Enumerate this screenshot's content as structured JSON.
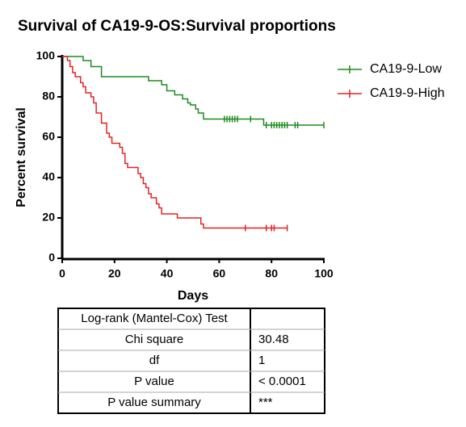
{
  "chart_data": {
    "type": "step",
    "title": "Survival of CA19-9-OS:Survival proportions",
    "x_label": "Days",
    "y_label": "Percent survival",
    "xlim": [
      0,
      100
    ],
    "xticks": [
      0,
      20,
      40,
      60,
      80,
      100
    ],
    "ylim": [
      0,
      100
    ],
    "yticks": [
      0,
      20,
      40,
      60,
      80,
      100
    ],
    "series": [
      {
        "name": "CA19-9-Low",
        "color": "#1f8a1f",
        "x": [
          0,
          8,
          11,
          15,
          33,
          38,
          40,
          43,
          46,
          48,
          49,
          51,
          52,
          54,
          77,
          100
        ],
        "values": [
          100,
          98,
          95,
          90,
          88,
          86,
          83,
          81,
          79,
          77,
          76,
          74,
          72,
          69,
          66,
          66
        ],
        "censored": {
          "x": [
            62,
            63,
            64,
            65,
            66,
            67,
            72,
            78,
            80,
            81,
            82,
            83,
            84,
            85,
            86,
            89,
            90,
            100
          ],
          "values": [
            69,
            69,
            69,
            69,
            69,
            69,
            69,
            66,
            66,
            66,
            66,
            66,
            66,
            66,
            66,
            66,
            66,
            66
          ]
        }
      },
      {
        "name": "CA19-9-High",
        "color": "#e52222",
        "x": [
          0,
          2,
          3,
          4,
          5,
          7,
          8,
          9,
          11,
          12,
          13,
          15,
          17,
          18,
          19,
          22,
          23,
          24,
          25,
          29,
          30,
          31,
          32,
          33,
          34,
          36,
          37,
          38,
          44,
          53,
          54,
          86
        ],
        "values": [
          100,
          98,
          95,
          92,
          90,
          87,
          85,
          82,
          80,
          77,
          72,
          67,
          62,
          60,
          57,
          55,
          52,
          47,
          45,
          42,
          40,
          37,
          35,
          32,
          30,
          27,
          25,
          22,
          20,
          17,
          15,
          15
        ],
        "censored": {
          "x": [
            70,
            78,
            80,
            81,
            86
          ],
          "values": [
            15,
            15,
            15,
            15,
            15
          ]
        }
      }
    ]
  },
  "table": {
    "rows": [
      [
        "Log-rank (Mantel-Cox) Test",
        ""
      ],
      [
        "Chi square",
        "30.48"
      ],
      [
        "df",
        "1"
      ],
      [
        "P value",
        "< 0.0001"
      ],
      [
        "P value summary",
        "***"
      ]
    ]
  }
}
